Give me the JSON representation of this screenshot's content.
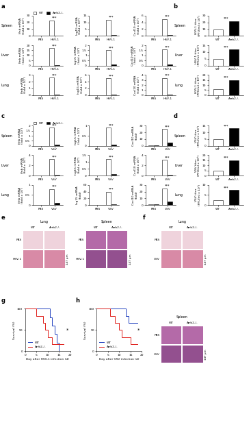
{
  "chart_data": [
    {
      "panel": "a",
      "type": "bar",
      "organ": "Spleen",
      "legend": "lower left",
      "ylabel": "Ifnb mRNA\n(fold x 10³)",
      "categories": [
        "PBS",
        "HSV-1"
      ],
      "series": [
        {
          "name": "WT",
          "color": "#ffffff",
          "values": [
            0,
            23
          ]
        },
        {
          "name": "Arrb2-/-",
          "color": "#000000",
          "values": [
            0,
            0.8
          ]
        }
      ],
      "ylim": [
        0,
        30
      ],
      "yticks": [
        0,
        10,
        20,
        30
      ],
      "annotation": "***"
    },
    {
      "panel": "a",
      "type": "bar",
      "ylabel": "Isg15 mRNA\n(fold x 10³)",
      "categories": [
        "PBS",
        "HSV-1"
      ],
      "series": [
        {
          "name": "WT",
          "color": "#ffffff",
          "values": [
            0,
            12
          ]
        },
        {
          "name": "Arrb2-/-",
          "color": "#000000",
          "values": [
            0,
            0.5
          ]
        }
      ],
      "ylim": [
        0,
        15
      ],
      "yticks": [
        0,
        5,
        10,
        15
      ],
      "annotation": "***"
    },
    {
      "panel": "a",
      "type": "bar",
      "ylabel": "Cxcl10 mRNA\n(fold x 10³)",
      "categories": [
        "PBS",
        "HSV-1"
      ],
      "series": [
        {
          "name": "WT",
          "color": "#ffffff",
          "values": [
            0,
            5
          ]
        },
        {
          "name": "Arrb2-/-",
          "color": "#000000",
          "values": [
            0,
            0.3
          ]
        }
      ],
      "ylim": [
        0,
        6
      ],
      "yticks": [
        0,
        2,
        4,
        6
      ],
      "annotation": "***"
    },
    {
      "panel": "a",
      "type": "bar",
      "organ": "Liver",
      "ylabel": "Ifnb mRNA\n(fold x 10³)",
      "categories": [
        "PBS",
        "HSV-1"
      ],
      "series": [
        {
          "name": "WT",
          "color": "#ffffff",
          "values": [
            0,
            17
          ]
        },
        {
          "name": "Arrb2-/-",
          "color": "#000000",
          "values": [
            0,
            0.6
          ]
        }
      ],
      "ylim": [
        0,
        20
      ],
      "yticks": [
        0,
        5,
        10,
        15,
        20
      ],
      "annotation": "***"
    },
    {
      "panel": "a",
      "type": "bar",
      "ylabel": "Isg15 mRNA\n(fold x 10³)",
      "categories": [
        "PBS",
        "HSV-1"
      ],
      "series": [
        {
          "name": "WT",
          "color": "#ffffff",
          "values": [
            0,
            1.5
          ]
        },
        {
          "name": "Arrb2-/-",
          "color": "#000000",
          "values": [
            0,
            0.1
          ]
        }
      ],
      "ylim": [
        0,
        2
      ],
      "yticks": [
        0,
        0.5,
        1,
        1.5,
        2
      ],
      "annotation": "***"
    },
    {
      "panel": "a",
      "type": "bar",
      "ylabel": "Cxcl10 mRNA\n(fold x 10³)",
      "categories": [
        "PBS",
        "HSV-1"
      ],
      "series": [
        {
          "name": "WT",
          "color": "#ffffff",
          "values": [
            0,
            1.6
          ]
        },
        {
          "name": "Arrb2-/-",
          "color": "#000000",
          "values": [
            0,
            0.1
          ]
        }
      ],
      "ylim": [
        0,
        2
      ],
      "yticks": [
        0,
        0.5,
        1,
        1.5,
        2
      ],
      "annotation": "***"
    },
    {
      "panel": "a",
      "type": "bar",
      "organ": "Lung",
      "ylabel": "Ifnb mRNA\n(fold x 10³)",
      "categories": [
        "PBS",
        "HSV-1"
      ],
      "series": [
        {
          "name": "WT",
          "color": "#ffffff",
          "values": [
            0,
            2.6
          ]
        },
        {
          "name": "Arrb2-/-",
          "color": "#000000",
          "values": [
            0,
            0.1
          ]
        }
      ],
      "ylim": [
        0,
        3
      ],
      "yticks": [
        0,
        1,
        2,
        3
      ],
      "annotation": "***"
    },
    {
      "panel": "a",
      "type": "bar",
      "ylabel": "Isg15 mRNA\n(fold x 10³)",
      "categories": [
        "PBS",
        "HSV-1"
      ],
      "series": [
        {
          "name": "WT",
          "color": "#ffffff",
          "values": [
            0,
            5
          ]
        },
        {
          "name": "Arrb2-/-",
          "color": "#000000",
          "values": [
            0,
            0.2
          ]
        }
      ],
      "ylim": [
        0,
        6
      ],
      "yticks": [
        0,
        2,
        4,
        6
      ],
      "annotation": "***"
    },
    {
      "panel": "a",
      "type": "bar",
      "ylabel": "Cxcl10 mRNA\n(fold x 10³)",
      "categories": [
        "PBS",
        "HSV-1"
      ],
      "series": [
        {
          "name": "WT",
          "color": "#ffffff",
          "values": [
            0,
            3.4
          ]
        },
        {
          "name": "Arrb2-/-",
          "color": "#000000",
          "values": [
            0,
            0.1
          ]
        }
      ],
      "ylim": [
        0,
        4
      ],
      "yticks": [
        0,
        1,
        2,
        3,
        4
      ],
      "annotation": "***"
    },
    {
      "panel": "b",
      "type": "bar",
      "organ": "Spleen",
      "ylabel": "HSV-1 titer\n(PFU/ml x 10³)",
      "categories": [
        "WT",
        "Arrb2-/-"
      ],
      "values": [
        10,
        22
      ],
      "colors": [
        "#ffffff",
        "#000000"
      ],
      "ylim": [
        0,
        30
      ],
      "yticks": [
        0,
        10,
        20,
        30
      ],
      "annotation": "***"
    },
    {
      "panel": "b",
      "type": "bar",
      "organ": "Liver",
      "ylabel": "HSV-1 titer\n(PFU/ml x 10³)",
      "categories": [
        "WT",
        "Arrb2-/-"
      ],
      "values": [
        5,
        12
      ],
      "colors": [
        "#ffffff",
        "#000000"
      ],
      "ylim": [
        0,
        15
      ],
      "yticks": [
        0,
        5,
        10,
        15
      ],
      "annotation": "***"
    },
    {
      "panel": "b",
      "type": "bar",
      "organ": "Lung",
      "ylabel": "HSV-1 titer\n(PFU/ml x 10³)",
      "categories": [
        "WT",
        "Arrb2-/-"
      ],
      "values": [
        6,
        15
      ],
      "colors": [
        "#ffffff",
        "#000000"
      ],
      "ylim": [
        0,
        20
      ],
      "yticks": [
        0,
        5,
        10,
        15,
        20
      ],
      "annotation": "***"
    },
    {
      "panel": "c",
      "type": "bar",
      "organ": "Spleen",
      "legend": "lower left",
      "ylabel": "Ifnb mRNA\n(fold x 10³)",
      "categories": [
        "PBS",
        "VSV"
      ],
      "series": [
        {
          "name": "WT",
          "color": "#ffffff",
          "values": [
            0,
            1.8
          ]
        },
        {
          "name": "Arrb2-/-",
          "color": "#000000",
          "values": [
            0,
            0.1
          ]
        }
      ],
      "ylim": [
        0,
        2
      ],
      "yticks": [
        0,
        0.5,
        1,
        1.5,
        2
      ],
      "annotation": "***"
    },
    {
      "panel": "c",
      "type": "bar",
      "ylabel": "Isg15 mRNA\n(fold x 10³)",
      "categories": [
        "PBS",
        "VSV"
      ],
      "series": [
        {
          "name": "WT",
          "color": "#ffffff",
          "values": [
            0,
            0.9
          ]
        },
        {
          "name": "Arrb2-/-",
          "color": "#000000",
          "values": [
            0,
            0.05
          ]
        }
      ],
      "ylim": [
        0,
        1
      ],
      "yticks": [
        0,
        0.5,
        1
      ],
      "annotation": "***"
    },
    {
      "panel": "c",
      "type": "bar",
      "ylabel": "Cxcl10 mRNA\n(fold)",
      "categories": [
        "PBS",
        "VSV"
      ],
      "series": [
        {
          "name": "WT",
          "color": "#ffffff",
          "values": [
            1,
            25
          ]
        },
        {
          "name": "Arrb2-/-",
          "color": "#000000",
          "values": [
            1,
            5
          ]
        }
      ],
      "ylim": [
        0,
        30
      ],
      "yticks": [
        0,
        10,
        20,
        30
      ],
      "annotation": "***"
    },
    {
      "panel": "c",
      "type": "bar",
      "organ": "Liver",
      "ylabel": "Ifnb mRNA\n(fold x 10³)",
      "categories": [
        "PBS",
        "VSV"
      ],
      "series": [
        {
          "name": "WT",
          "color": "#ffffff",
          "values": [
            0,
            3.2
          ]
        },
        {
          "name": "Arrb2-/-",
          "color": "#000000",
          "values": [
            0,
            0.2
          ]
        }
      ],
      "ylim": [
        0,
        4
      ],
      "yticks": [
        0,
        2,
        4
      ],
      "annotation": "***"
    },
    {
      "panel": "c",
      "type": "bar",
      "ylabel": "Isg15 mRNA\n(fold x 10³)",
      "categories": [
        "PBS",
        "VSV"
      ],
      "series": [
        {
          "name": "WT",
          "color": "#ffffff",
          "values": [
            0,
            1.2
          ]
        },
        {
          "name": "Arrb2-/-",
          "color": "#000000",
          "values": [
            0,
            0.1
          ]
        }
      ],
      "ylim": [
        0,
        1.5
      ],
      "yticks": [
        0,
        0.5,
        1,
        1.5
      ],
      "annotation": "***"
    },
    {
      "panel": "c",
      "type": "bar",
      "ylabel": "Cxcl10 mRNA\n(fold x 10³)",
      "categories": [
        "PBS",
        "VSV"
      ],
      "series": [
        {
          "name": "WT",
          "color": "#ffffff",
          "values": [
            0,
            3.1
          ]
        },
        {
          "name": "Arrb2-/-",
          "color": "#000000",
          "values": [
            0,
            0.2
          ]
        }
      ],
      "ylim": [
        0,
        4
      ],
      "yticks": [
        0,
        2,
        4
      ],
      "annotation": "***"
    },
    {
      "panel": "c",
      "type": "bar",
      "organ": "Lung",
      "ylabel": "Ifnb mRNA\n(fold x 10³)",
      "categories": [
        "PBS",
        "VSV"
      ],
      "series": [
        {
          "name": "WT",
          "color": "#ffffff",
          "values": [
            0,
            0.8
          ]
        },
        {
          "name": "Arrb2-/-",
          "color": "#000000",
          "values": [
            0,
            0.1
          ]
        }
      ],
      "ylim": [
        0,
        1
      ],
      "yticks": [
        0,
        0.5,
        1
      ],
      "annotation": "***"
    },
    {
      "panel": "c",
      "type": "bar",
      "ylabel": "Isg15 mRNA\n(fold)",
      "categories": [
        "PBS",
        "VSV"
      ],
      "series": [
        {
          "name": "WT",
          "color": "#ffffff",
          "values": [
            1,
            40
          ]
        },
        {
          "name": "Arrb2-/-",
          "color": "#000000",
          "values": [
            1,
            2
          ]
        }
      ],
      "ylim": [
        0,
        60
      ],
      "yticks": [
        0,
        20,
        40,
        60
      ],
      "annotation": "***"
    },
    {
      "panel": "c",
      "type": "bar",
      "ylabel": "Cxcl10 mRNA\n(fold)",
      "categories": [
        "PBS",
        "VSV"
      ],
      "series": [
        {
          "name": "WT",
          "color": "#ffffff",
          "values": [
            1,
            25
          ]
        },
        {
          "name": "Arrb2-/-",
          "color": "#000000",
          "values": [
            1,
            5
          ]
        }
      ],
      "ylim": [
        0,
        30
      ],
      "yticks": [
        0,
        10,
        20,
        30
      ],
      "annotation": "***"
    },
    {
      "panel": "d",
      "type": "bar",
      "organ": "Spleen",
      "ylabel": "VSV titer\n(PFU/ml x 10³)",
      "categories": [
        "WT",
        "Arrb2-/-"
      ],
      "values": [
        5,
        13
      ],
      "colors": [
        "#ffffff",
        "#000000"
      ],
      "ylim": [
        0,
        15
      ],
      "yticks": [
        0,
        5,
        10,
        15
      ],
      "annotation": "***"
    },
    {
      "panel": "d",
      "type": "bar",
      "organ": "Liver",
      "ylabel": "VSV titer\n(PFU/ml x 10³)",
      "categories": [
        "WT",
        "Arrb2-/-"
      ],
      "values": [
        5,
        15
      ],
      "colors": [
        "#ffffff",
        "#000000"
      ],
      "ylim": [
        0,
        20
      ],
      "yticks": [
        0,
        5,
        10,
        15,
        20
      ],
      "annotation": "***"
    },
    {
      "panel": "d",
      "type": "bar",
      "organ": "Lung",
      "ylabel": "VSV titer\n(PFU/ml x 10³)",
      "categories": [
        "WT",
        "Arrb2-/-"
      ],
      "values": [
        2.5,
        7.5
      ],
      "colors": [
        "#ffffff",
        "#000000"
      ],
      "ylim": [
        0,
        10
      ],
      "yticks": [
        0,
        5,
        10
      ],
      "annotation": "***"
    },
    {
      "panel": "g",
      "type": "line",
      "line_style": "steps",
      "legend": "lower left",
      "xlabel": "Day after HSV-1 infection (d)",
      "ylabel": "Survival (%)",
      "series": [
        {
          "name": "WT",
          "color": "#1f3fbf",
          "x": [
            0,
            11,
            12,
            13,
            14,
            15
          ],
          "values": [
            100,
            80,
            60,
            40,
            20,
            0
          ]
        },
        {
          "name": "Arrb2-/-",
          "color": "#e0201b",
          "x": [
            0,
            5,
            8,
            9,
            10,
            12,
            17
          ],
          "values": [
            100,
            83,
            67,
            50,
            33,
            17,
            17
          ]
        }
      ],
      "xlim": [
        0,
        20
      ],
      "xticks": [
        0,
        5,
        10,
        15,
        20
      ],
      "ylim": [
        0,
        100
      ],
      "yticks": [
        0,
        50,
        100
      ],
      "annotation": "*"
    },
    {
      "panel": "h",
      "type": "line",
      "line_style": "steps",
      "legend": "lower left",
      "xlabel": "Day after VSV infection (d)",
      "ylabel": "Survival (%)",
      "series": [
        {
          "name": "WT",
          "color": "#1f3fbf",
          "x": [
            0,
            13,
            14,
            18
          ],
          "values": [
            100,
            83,
            67,
            67
          ]
        },
        {
          "name": "Arrb2-/-",
          "color": "#e0201b",
          "x": [
            0,
            6,
            8,
            10,
            11,
            15,
            18
          ],
          "values": [
            100,
            83,
            67,
            50,
            33,
            17,
            17
          ]
        }
      ],
      "xlim": [
        0,
        20
      ],
      "xticks": [
        0,
        5,
        10,
        15,
        20
      ],
      "ylim": [
        0,
        100
      ],
      "yticks": [
        0,
        50,
        100
      ],
      "annotation": "*"
    }
  ],
  "histology": [
    {
      "panel": "e",
      "organ": "Lung",
      "columns": [
        "WT",
        "Arrb2-/-"
      ],
      "rows": [
        "PBS",
        "HSV-1"
      ],
      "scale_bar": "147 μm"
    },
    {
      "panel": "e",
      "organ": "Spleen",
      "columns": [
        "WT",
        "Arrb2-/-"
      ],
      "rows": [
        "PBS",
        "HSV-1"
      ],
      "scale_bar": "147 μm"
    },
    {
      "panel": "f",
      "organ": "Lung",
      "columns": [
        "WT",
        "Arrb2-/-"
      ],
      "rows": [
        "PBS",
        "VSV"
      ],
      "scale_bar": "147 μm"
    },
    {
      "panel": "f",
      "organ": "Spleen",
      "columns": [
        "WT",
        "Arrb2-/-"
      ],
      "rows": [
        "PBS",
        "VSV"
      ],
      "scale_bar": "147 μm"
    }
  ]
}
